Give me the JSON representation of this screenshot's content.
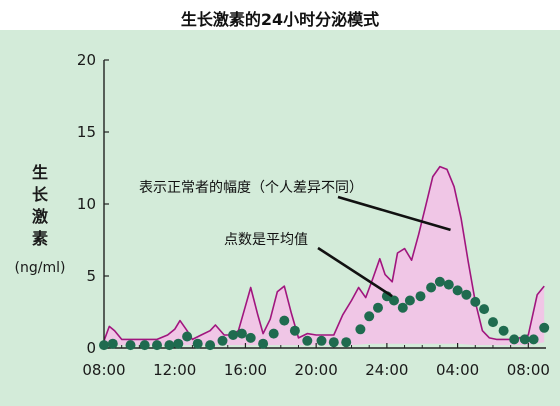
{
  "chart_data": {
    "type": "area",
    "title": "生长激素的24小时分泌模式",
    "ylabel": "生长激素",
    "yunit": "(ng/ml)",
    "ylim": [
      0,
      20
    ],
    "yticks": [
      "0",
      "5",
      "10",
      "15",
      "20"
    ],
    "xlim": [
      8,
      33
    ],
    "xticks": [
      {
        "x": 8,
        "label": "08:00"
      },
      {
        "x": 12,
        "label": "12:00"
      },
      {
        "x": 16,
        "label": "16:00"
      },
      {
        "x": 20,
        "label": "20:00"
      },
      {
        "x": 24,
        "label": "24:00"
      },
      {
        "x": 28,
        "label": "04:00"
      },
      {
        "x": 32,
        "label": "08:00"
      }
    ],
    "grid": false,
    "colors": {
      "background": "#d3ebd9",
      "band": "#f0c6e6",
      "band_edge": "#a0167e",
      "dots": "#1f6b4f"
    },
    "series": [
      {
        "role": "range_upper",
        "x": [
          8,
          8.3,
          8.6,
          9.0,
          9.5,
          10.0,
          10.5,
          11.0,
          11.6,
          12.0,
          12.3,
          12.7,
          13.0,
          13.5,
          14.0,
          14.3,
          14.8,
          15.2,
          15.6,
          16.0,
          16.3,
          16.7,
          17.0,
          17.4,
          17.8,
          18.2,
          18.6,
          19.0,
          19.5,
          20.0,
          20.5,
          21.0,
          21.5,
          22.0,
          22.4,
          22.8,
          23.2,
          23.6,
          23.9,
          24.3,
          24.6,
          25.0,
          25.4,
          25.8,
          26.2,
          26.6,
          27.0,
          27.4,
          27.8,
          28.2,
          28.6,
          29.0,
          29.4,
          29.8,
          30.2,
          30.6,
          31.0,
          31.5,
          32.0,
          32.5,
          32.9
        ],
        "values": [
          0.5,
          1.5,
          1.2,
          0.6,
          0.6,
          0.6,
          0.6,
          0.6,
          0.9,
          1.3,
          1.9,
          1.2,
          0.6,
          0.9,
          1.2,
          1.6,
          0.9,
          0.9,
          1.2,
          2.9,
          4.2,
          2.3,
          1.0,
          2.0,
          3.9,
          4.3,
          2.4,
          0.7,
          1.0,
          0.9,
          0.9,
          0.9,
          2.3,
          3.3,
          4.2,
          3.5,
          4.8,
          6.2,
          5.1,
          4.6,
          6.6,
          6.9,
          6.1,
          7.9,
          9.9,
          11.9,
          12.6,
          12.4,
          11.2,
          9.0,
          6.0,
          3.2,
          1.2,
          0.7,
          0.6,
          0.6,
          0.6,
          0.7,
          0.9,
          3.7,
          4.3
        ]
      },
      {
        "role": "range_lower",
        "x": [
          8,
          9,
          10,
          11,
          12,
          13,
          14,
          15,
          16,
          17,
          18,
          19,
          20,
          21,
          22,
          23,
          24,
          25,
          26,
          27,
          28,
          29,
          30,
          31,
          32,
          32.9
        ],
        "values": [
          0.2,
          0.2,
          0.2,
          0.2,
          0.2,
          0.2,
          0.2,
          0.2,
          0.2,
          0.2,
          0.2,
          0.2,
          0.2,
          0.2,
          0.2,
          0.3,
          0.3,
          0.3,
          0.3,
          0.3,
          0.3,
          0.2,
          0.2,
          0.2,
          0.2,
          0.4
        ]
      },
      {
        "role": "mean",
        "x": [
          8.0,
          8.5,
          9.5,
          10.3,
          11.0,
          11.7,
          12.2,
          12.7,
          13.3,
          14.0,
          14.7,
          15.3,
          15.8,
          16.3,
          17.0,
          17.6,
          18.2,
          18.8,
          19.5,
          20.3,
          21.0,
          21.7,
          22.5,
          23.0,
          23.5,
          24.0,
          24.4,
          24.9,
          25.3,
          25.9,
          26.5,
          27.0,
          27.5,
          28.0,
          28.5,
          29.0,
          29.5,
          30.0,
          30.6,
          31.2,
          31.8,
          32.3,
          32.9
        ],
        "values": [
          0.2,
          0.3,
          0.2,
          0.2,
          0.2,
          0.2,
          0.3,
          0.8,
          0.3,
          0.2,
          0.5,
          0.9,
          1.0,
          0.7,
          0.3,
          1.0,
          1.9,
          1.2,
          0.5,
          0.5,
          0.4,
          0.4,
          1.3,
          2.2,
          2.8,
          3.6,
          3.3,
          2.8,
          3.3,
          3.6,
          4.2,
          4.6,
          4.4,
          4.0,
          3.7,
          3.2,
          2.7,
          1.8,
          1.2,
          0.6,
          0.6,
          0.6,
          1.4
        ]
      }
    ],
    "annotations": [
      {
        "text": "表示正常者的幅度（个人差异不同）",
        "x": 27.6,
        "y": 8.2
      },
      {
        "text": "点数是平均值",
        "x": 24.3,
        "y": 3.6
      }
    ]
  }
}
